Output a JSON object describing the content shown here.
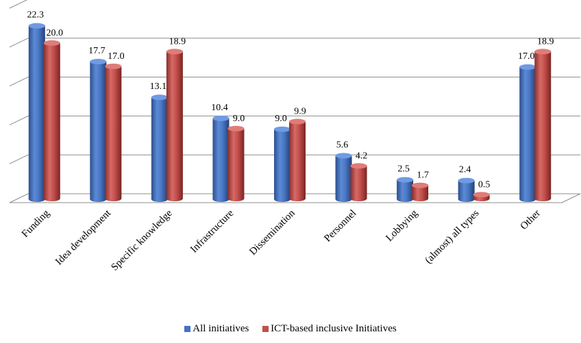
{
  "chart_data": {
    "type": "bar",
    "style": "3d-clustered-cylinder",
    "categories": [
      "Funding",
      "Idea development",
      "Specific knowledge",
      "Infrastructure",
      "Dissemination",
      "Personnel",
      "Lobbying",
      "(almost) all types",
      "Other"
    ],
    "series": [
      {
        "name": "All initiatives",
        "color": "#4472C4",
        "values": [
          22.3,
          17.7,
          13.1,
          10.4,
          9.0,
          5.6,
          2.5,
          2.4,
          17.0
        ]
      },
      {
        "name": "ICT-based inclusive Initiatives",
        "color": "#C0504D",
        "values": [
          20.0,
          17.0,
          18.9,
          9.0,
          9.9,
          4.2,
          1.7,
          0.5,
          18.9
        ]
      }
    ],
    "value_labels": [
      [
        "22.3",
        "17.7",
        "13.1",
        "10.4",
        "9.0",
        "5.6",
        "2.5",
        "2.4",
        "17.0"
      ],
      [
        "20.0",
        "17.0",
        "18.9",
        "9.0",
        "9.9",
        "4.2",
        "1.7",
        "0.5",
        "18.9"
      ]
    ],
    "ylim": [
      0,
      25
    ],
    "grid": true,
    "legend_position": "bottom",
    "title": "",
    "xlabel": "",
    "ylabel": ""
  }
}
